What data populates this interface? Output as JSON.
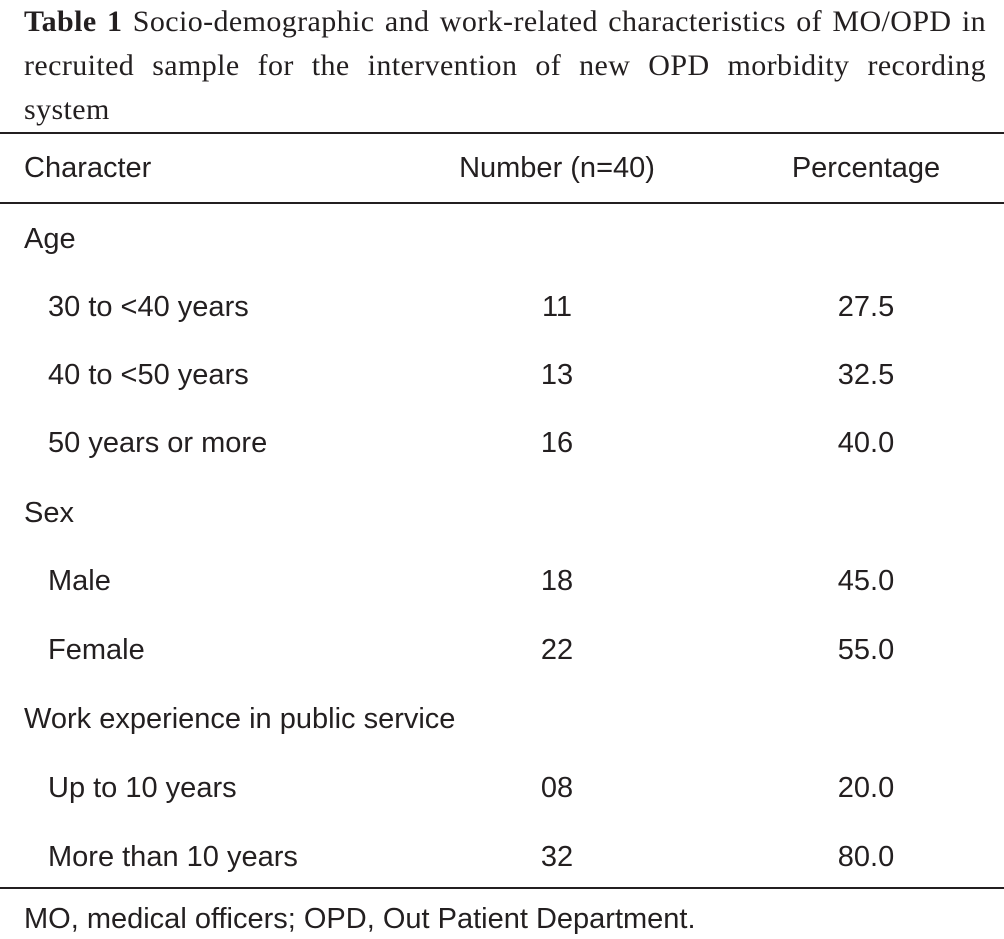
{
  "caption": {
    "label": "Table 1",
    "text": "Socio-demographic and work-related characteristics of MO/OPD in recruited sample for the intervention of new OPD morbidity recording system"
  },
  "table": {
    "headers": [
      "Character",
      "Number (n=40)",
      "Percentage"
    ],
    "rows": [
      {
        "label": "Age",
        "number": "",
        "percentage": ""
      },
      {
        "label": "30 to <40 years",
        "number": "11",
        "percentage": "27.5"
      },
      {
        "label": "40 to <50 years",
        "number": "13",
        "percentage": "32.5"
      },
      {
        "label": "50 years or more",
        "number": "16",
        "percentage": "40.0"
      },
      {
        "label": "Sex",
        "number": "",
        "percentage": ""
      },
      {
        "label": "Male",
        "number": "18",
        "percentage": "45.0"
      },
      {
        "label": "Female",
        "number": "22",
        "percentage": "55.0"
      },
      {
        "label": "Work experience in public service",
        "number": "",
        "percentage": ""
      },
      {
        "label": "Up to 10 years",
        "number": "08",
        "percentage": "20.0"
      },
      {
        "label": "More than 10 years",
        "number": "32",
        "percentage": "80.0"
      }
    ]
  },
  "footnote": "MO, medical officers; OPD, Out Patient Department."
}
